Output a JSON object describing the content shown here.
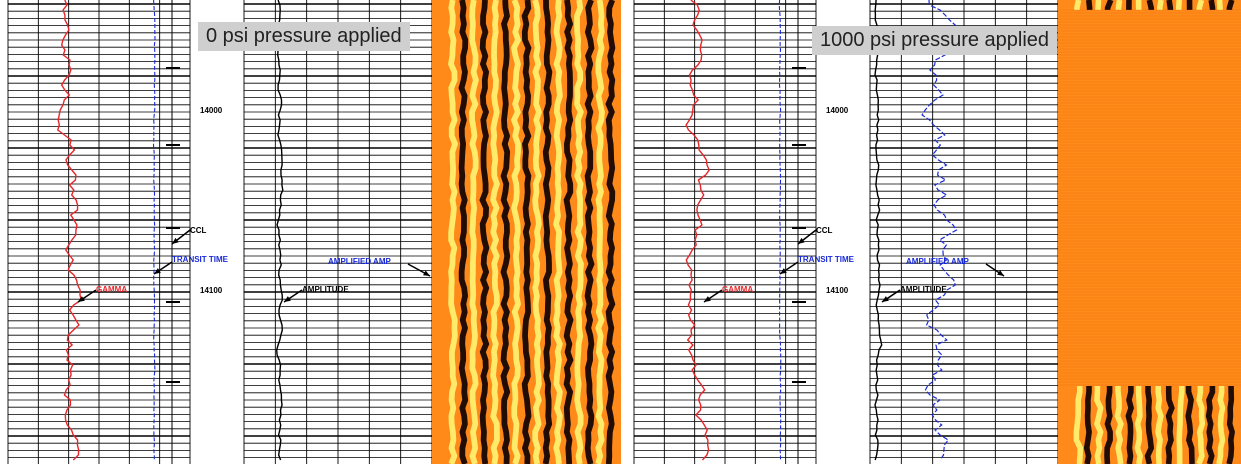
{
  "panels": [
    {
      "pressure_label": "0 psi pressure applied",
      "pressure_psi": 0
    },
    {
      "pressure_label": "1000 psi pressure applied",
      "pressure_psi": 1000
    }
  ],
  "depth_labels": [
    "14000",
    "14100"
  ],
  "curve_labels": {
    "ccl": "CCL",
    "transit_time": "TRANSIT TIME",
    "gamma": "GAMMA",
    "amplitude": "AMPLITUDE",
    "amplified_amp": "AMPLIFIED AMP"
  },
  "colors": {
    "gamma": "#e8262a",
    "transit_time": "#1a2bd6",
    "amplitude": "#000000",
    "amplified_amp": "#1a2bd6",
    "grid": "#000000",
    "vdl_orange": "#ff8a1a",
    "vdl_yellow": "#ffef6e",
    "vdl_dark": "#150505"
  },
  "chart_data": [
    {
      "type": "line",
      "title": "",
      "y_axis": "depth",
      "depth_ticks": [
        14000,
        14100
      ],
      "series": [
        {
          "name": "GAMMA"
        },
        {
          "name": "TRANSIT TIME"
        },
        {
          "name": "CCL"
        },
        {
          "name": "AMPLITUDE"
        },
        {
          "name": "AMPLIFIED AMP"
        }
      ]
    },
    {
      "type": "line",
      "title": "",
      "y_axis": "depth",
      "depth_ticks": [
        14000,
        14100
      ],
      "series": [
        {
          "name": "GAMMA"
        },
        {
          "name": "TRANSIT TIME"
        },
        {
          "name": "CCL"
        },
        {
          "name": "AMPLITUDE"
        },
        {
          "name": "AMPLIFIED AMP"
        }
      ]
    }
  ]
}
